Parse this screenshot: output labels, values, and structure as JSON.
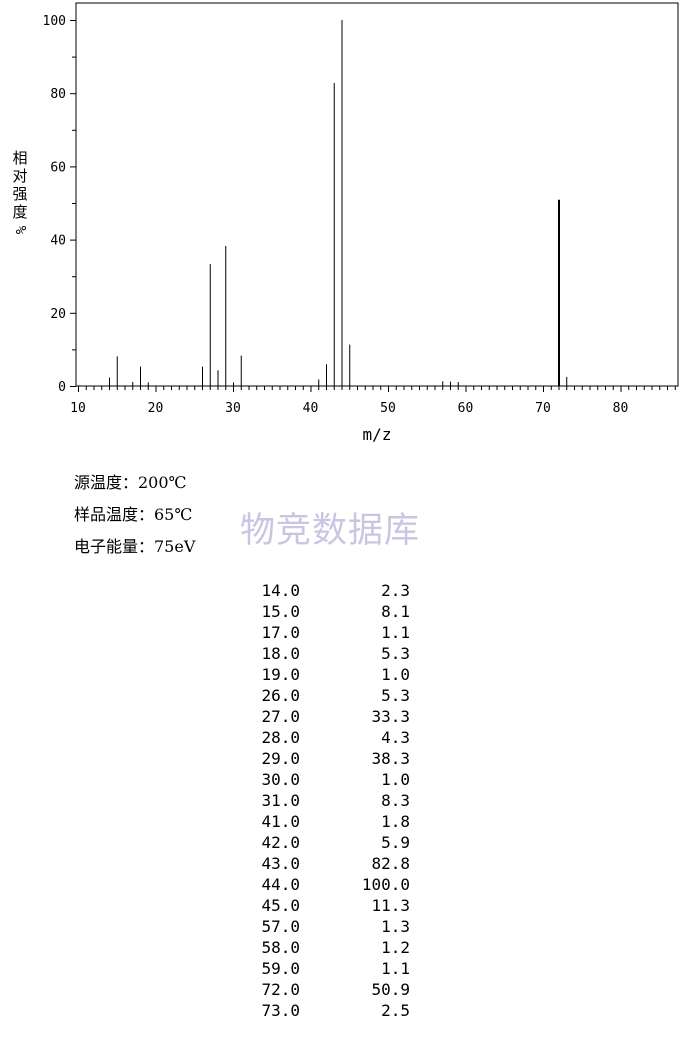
{
  "chart_data": {
    "type": "bar",
    "title": "",
    "xlabel": "m/z",
    "ylabel": "相对强度 %",
    "ylabel_chars": [
      "相",
      "对",
      "强",
      "度"
    ],
    "ylabel_unit": "%",
    "xlim": [
      10,
      88
    ],
    "ylim": [
      0,
      100
    ],
    "xticks": [
      10,
      20,
      30,
      40,
      50,
      60,
      70,
      80
    ],
    "yticks": [
      0,
      20,
      40,
      60,
      80,
      100
    ],
    "xtick_labels": [
      "10",
      "20",
      "30",
      "40",
      "50",
      "60",
      "70",
      "80"
    ],
    "ytick_labels": [
      "0",
      "20",
      "40",
      "60",
      "80",
      "100"
    ],
    "x": [
      14,
      15,
      17,
      18,
      19,
      26,
      27,
      28,
      29,
      30,
      31,
      41,
      42,
      43,
      44,
      45,
      57,
      58,
      59,
      72,
      73
    ],
    "values": [
      2.3,
      8.1,
      1.1,
      5.3,
      1.0,
      5.3,
      33.3,
      4.3,
      38.3,
      1.0,
      8.3,
      1.8,
      5.9,
      82.8,
      100.0,
      11.3,
      1.3,
      1.2,
      1.1,
      50.9,
      2.5
    ],
    "grid": false
  },
  "info": {
    "source_temp": "源温度：200℃",
    "sample_temp": "样品温度：65℃",
    "electron_energy": "电子能量：75eV"
  },
  "watermark": "物竞数据库",
  "peak_table": [
    {
      "mz": "14.0",
      "abundance": "2.3"
    },
    {
      "mz": "15.0",
      "abundance": "8.1"
    },
    {
      "mz": "17.0",
      "abundance": "1.1"
    },
    {
      "mz": "18.0",
      "abundance": "5.3"
    },
    {
      "mz": "19.0",
      "abundance": "1.0"
    },
    {
      "mz": "26.0",
      "abundance": "5.3"
    },
    {
      "mz": "27.0",
      "abundance": "33.3"
    },
    {
      "mz": "28.0",
      "abundance": "4.3"
    },
    {
      "mz": "29.0",
      "abundance": "38.3"
    },
    {
      "mz": "30.0",
      "abundance": "1.0"
    },
    {
      "mz": "31.0",
      "abundance": "8.3"
    },
    {
      "mz": "41.0",
      "abundance": "1.8"
    },
    {
      "mz": "42.0",
      "abundance": "5.9"
    },
    {
      "mz": "43.0",
      "abundance": "82.8"
    },
    {
      "mz": "44.0",
      "abundance": "100.0"
    },
    {
      "mz": "45.0",
      "abundance": "11.3"
    },
    {
      "mz": "57.0",
      "abundance": "1.3"
    },
    {
      "mz": "58.0",
      "abundance": "1.2"
    },
    {
      "mz": "59.0",
      "abundance": "1.1"
    },
    {
      "mz": "72.0",
      "abundance": "50.9"
    },
    {
      "mz": "73.0",
      "abundance": "2.5"
    }
  ]
}
